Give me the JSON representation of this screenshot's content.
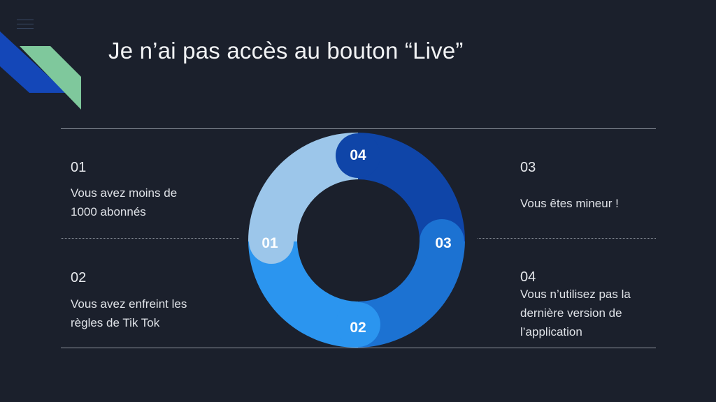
{
  "title": "Je n’ai pas accès au bouton “Live”",
  "items": [
    {
      "num": "01",
      "text_line1": "Vous avez moins de",
      "text_line2": "1000 abonnés"
    },
    {
      "num": "02",
      "text_line1": "Vous avez enfreint les",
      "text_line2": "règles de Tik Tok"
    },
    {
      "num": "03",
      "text_line1": "Vous êtes mineur !"
    },
    {
      "num": "04",
      "text_line1": "Vous n’utilisez pas la",
      "text_line2": "dernière version de",
      "text_line3": "l’application"
    }
  ],
  "donut": {
    "segments": [
      {
        "label": "01",
        "color": "#9cc6ea"
      },
      {
        "label": "02",
        "color": "#2b95ef"
      },
      {
        "label": "03",
        "color": "#1c72d2"
      },
      {
        "label": "04",
        "color": "#0f45a8"
      }
    ]
  },
  "colors": {
    "background": "#1b202c",
    "accent_green": "#7fc89c",
    "accent_blue": "#1447b8"
  },
  "icons": [
    "hamburger-menu-icon"
  ]
}
